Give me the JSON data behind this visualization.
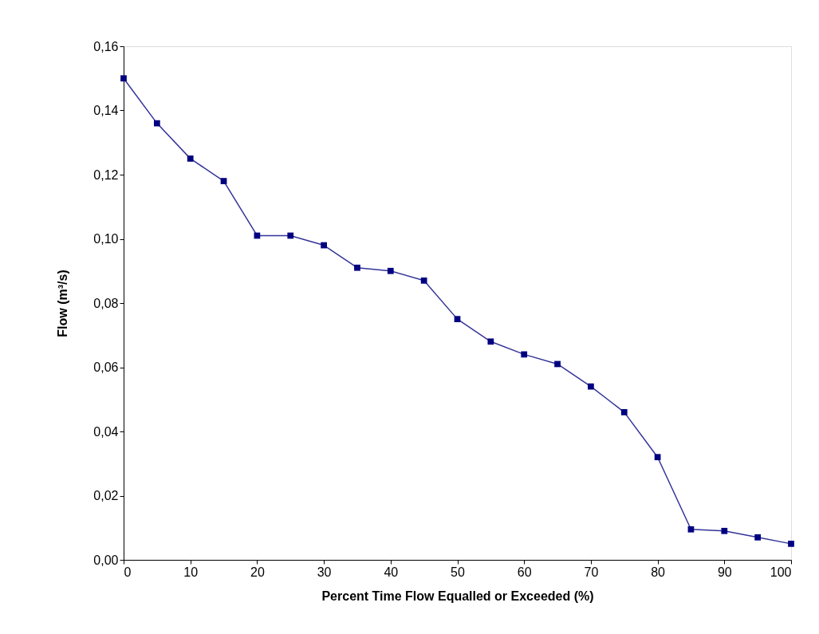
{
  "chart_data": {
    "type": "line",
    "xlabel": "Percent Time Flow Equalled or Exceeded (%)",
    "ylabel": "Flow (m³/s)",
    "x": [
      0,
      5,
      10,
      15,
      20,
      25,
      30,
      35,
      40,
      45,
      50,
      55,
      60,
      65,
      70,
      75,
      80,
      85,
      90,
      95,
      100
    ],
    "series": [
      {
        "color": "#000080",
        "values": [
          0.15,
          0.136,
          0.125,
          0.118,
          0.101,
          0.101,
          0.098,
          0.091,
          0.09,
          0.087,
          0.075,
          0.068,
          0.064,
          0.061,
          0.054,
          0.046,
          0.032,
          0.0095,
          0.009,
          0.007,
          0.005
        ]
      }
    ],
    "xlim": [
      0,
      100
    ],
    "xticks": [
      0,
      10,
      20,
      30,
      40,
      50,
      60,
      70,
      80,
      90,
      100
    ],
    "ylim": [
      0,
      0.16
    ],
    "yticks": [
      {
        "value": 0,
        "label": "0,00"
      },
      {
        "value": 0.02,
        "label": "0,02"
      },
      {
        "value": 0.04,
        "label": "0,04"
      },
      {
        "value": 0.06,
        "label": "0,06"
      },
      {
        "value": 0.08,
        "label": "0,08"
      },
      {
        "value": 0.1,
        "label": "0,10"
      },
      {
        "value": 0.12,
        "label": "0,12"
      },
      {
        "value": 0.14,
        "label": "0,14"
      },
      {
        "value": 0.16,
        "label": "0,16"
      }
    ],
    "marker": "square",
    "line_style": "solid",
    "grid": false
  }
}
